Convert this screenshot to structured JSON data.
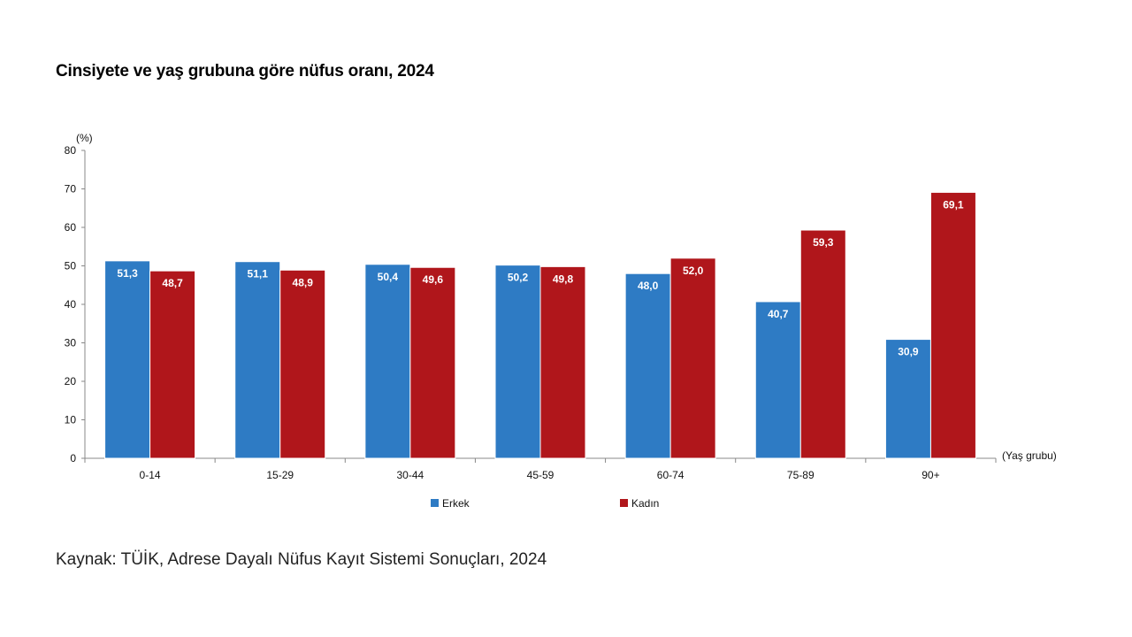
{
  "title": "Cinsiyete ve yaş grubuna göre nüfus oranı, 2024",
  "source": "Kaynak: TÜİK, Adrese Dayalı Nüfus Kayıt Sistemi Sonuçları, 2024",
  "chart_data": {
    "type": "bar",
    "title": "Cinsiyete ve yaş grubuna göre nüfus oranı, 2024",
    "ylabel": "(%)",
    "xlabel": "(Yaş grubu)",
    "categories": [
      "0-14",
      "15-29",
      "30-44",
      "45-59",
      "60-74",
      "75-89",
      "90+"
    ],
    "series": [
      {
        "name": "Erkek",
        "color": "#2E7BC4",
        "values": [
          51.3,
          51.1,
          50.4,
          50.2,
          48.0,
          40.7,
          30.9
        ],
        "labels": [
          "51,3",
          "51,1",
          "50,4",
          "50,2",
          "48,0",
          "40,7",
          "30,9"
        ]
      },
      {
        "name": "Kadın",
        "color": "#B0161B",
        "values": [
          48.7,
          48.9,
          49.6,
          49.8,
          52.0,
          59.3,
          69.1
        ],
        "labels": [
          "48,7",
          "48,9",
          "49,6",
          "49,8",
          "52,0",
          "59,3",
          "69,1"
        ]
      }
    ],
    "ylim": [
      0,
      80
    ],
    "yticks": [
      "0",
      "10",
      "20",
      "30",
      "40",
      "50",
      "60",
      "70",
      "80"
    ],
    "grid": false,
    "legend_position": "bottom"
  }
}
